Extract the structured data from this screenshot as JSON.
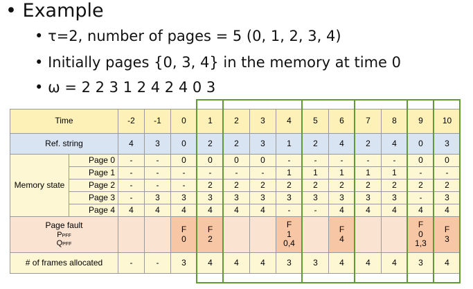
{
  "slide": {
    "bullet": "Example",
    "subbullets": [
      "τ=2, number of pages = 5 (0, 1, 2, 3, 4)",
      "Initially pages {0, 3, 4} in the memory at time 0",
      "ω = 2 2 3 1 2 4 2 4 0 3"
    ]
  },
  "table": {
    "time_label": "Time",
    "times": [
      "-2",
      "-1",
      "0",
      "1",
      "2",
      "3",
      "4",
      "5",
      "6",
      "7",
      "8",
      "9",
      "10"
    ],
    "ref_label": "Ref. string",
    "ref": [
      "4",
      "3",
      "0",
      "2",
      "2",
      "3",
      "1",
      "2",
      "4",
      "2",
      "4",
      "0",
      "3"
    ],
    "memory_label": "Memory state",
    "pages": [
      {
        "label": "Page 0",
        "cells": [
          "-",
          "-",
          "0",
          "0",
          "0",
          "0",
          "-",
          "-",
          "-",
          "-",
          "-",
          "0",
          "0"
        ]
      },
      {
        "label": "Page 1",
        "cells": [
          "-",
          "-",
          "-",
          "-",
          "-",
          "-",
          "1",
          "1",
          "1",
          "1",
          "1",
          "-",
          "-"
        ]
      },
      {
        "label": "Page 2",
        "cells": [
          "-",
          "-",
          "-",
          "2",
          "2",
          "2",
          "2",
          "2",
          "2",
          "2",
          "2",
          "2",
          "2"
        ]
      },
      {
        "label": "Page 3",
        "cells": [
          "-",
          "3",
          "3",
          "3",
          "3",
          "3",
          "3",
          "3",
          "3",
          "3",
          "3",
          "-",
          "3"
        ]
      },
      {
        "label": "Page 4",
        "cells": [
          "4",
          "4",
          "4",
          "4",
          "4",
          "4",
          "-",
          "-",
          "4",
          "4",
          "4",
          "4",
          "4"
        ]
      }
    ],
    "fault_label": {
      "title": "Page fault",
      "p": "P",
      "p_sub": "PFF",
      "q": "Q",
      "q_sub": "PFF"
    },
    "faults": [
      null,
      null,
      [
        "F",
        "0"
      ],
      [
        "F",
        "2"
      ],
      null,
      null,
      [
        "F",
        "1",
        "0,4"
      ],
      null,
      [
        "F",
        "4"
      ],
      null,
      null,
      [
        "F",
        "0",
        "1,3"
      ],
      [
        "F",
        "3"
      ]
    ],
    "frames_label": "# of frames allocated",
    "frames": [
      "-",
      "-",
      "3",
      "4",
      "4",
      "4",
      "3",
      "3",
      "4",
      "4",
      "4",
      "3",
      "4"
    ]
  }
}
